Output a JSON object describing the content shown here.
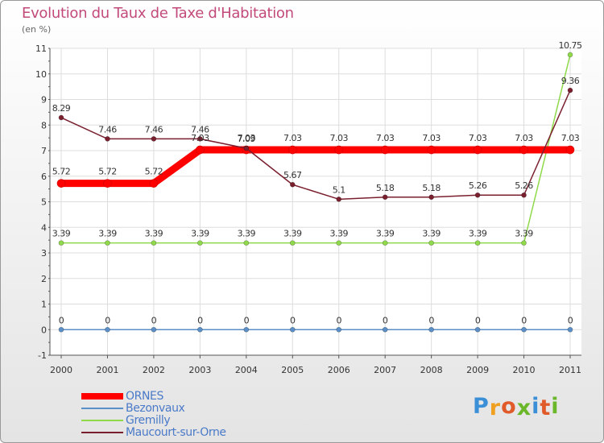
{
  "title": "Evolution du Taux de Taxe d'Habitation",
  "subtitle": "(en %)",
  "brand": {
    "text": "Proxiti",
    "letter_colors": [
      "#3a8fd6",
      "#f0a020",
      "#e05a2a",
      "#6ab82a",
      "#3a8fd6",
      "#e05a2a",
      "#6ab82a"
    ]
  },
  "chart_data": {
    "type": "line",
    "x": [
      "2000",
      "2001",
      "2002",
      "2003",
      "2004",
      "2005",
      "2006",
      "2007",
      "2008",
      "2009",
      "2010",
      "2011"
    ],
    "ylim": [
      -1,
      11
    ],
    "yticks": [
      "-1",
      "0",
      "1",
      "2",
      "3",
      "4",
      "5",
      "6",
      "7",
      "8",
      "9",
      "10",
      "11"
    ],
    "grid": true,
    "series": [
      {
        "name": "ORNES",
        "color": "#ff0000",
        "line_width": "thick",
        "values": [
          5.72,
          5.72,
          5.72,
          7.03,
          7.03,
          7.03,
          7.03,
          7.03,
          7.03,
          7.03,
          7.03,
          7.03
        ],
        "labels": [
          "5.72",
          "5.72",
          "5.72",
          "7.03",
          "7.03",
          "7.03",
          "7.03",
          "7.03",
          "7.03",
          "7.03",
          "7.03",
          "7.03"
        ]
      },
      {
        "name": "Bezonvaux",
        "color": "#5b8fc7",
        "line_width": "thin",
        "values": [
          0,
          0,
          0,
          0,
          0,
          0,
          0,
          0,
          0,
          0,
          0,
          0
        ],
        "labels": [
          "0",
          "0",
          "0",
          "0",
          "0",
          "0",
          "0",
          "0",
          "0",
          "0",
          "0",
          "0"
        ]
      },
      {
        "name": "Gremilly",
        "color": "#8fd94a",
        "line_width": "thin",
        "values": [
          3.39,
          3.39,
          3.39,
          3.39,
          3.39,
          3.39,
          3.39,
          3.39,
          3.39,
          3.39,
          3.39,
          10.75
        ],
        "labels": [
          "3.39",
          "3.39",
          "3.39",
          "3.39",
          "3.39",
          "3.39",
          "3.39",
          "3.39",
          "3.39",
          "3.39",
          "3.39",
          "10.75"
        ]
      },
      {
        "name": "Maucourt-sur-Orne",
        "color": "#7a1f2e",
        "line_width": "thin",
        "values": [
          8.29,
          7.46,
          7.46,
          7.46,
          7.09,
          5.67,
          5.1,
          5.18,
          5.18,
          5.26,
          5.26,
          9.36
        ],
        "labels": [
          "8.29",
          "7.46",
          "7.46",
          "7.46",
          "7.09",
          "5.67",
          "5.1",
          "5.18",
          "5.18",
          "5.26",
          "5.26",
          "9.36"
        ]
      }
    ]
  }
}
